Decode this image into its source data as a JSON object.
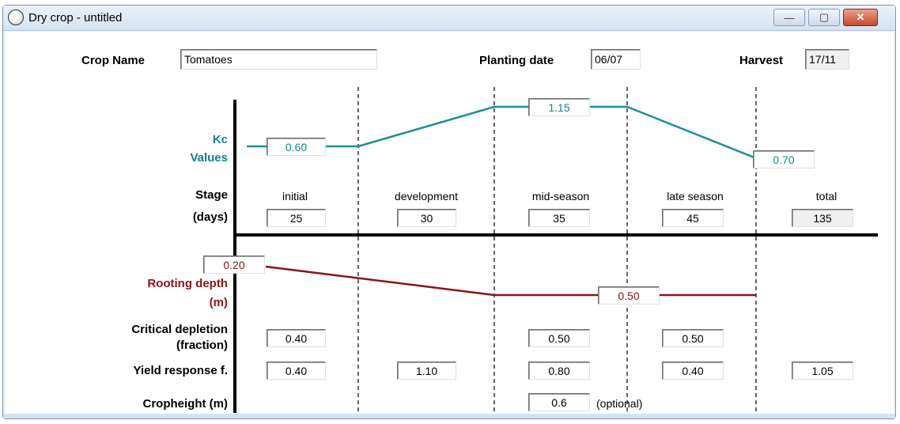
{
  "window": {
    "title": "Dry crop - untitled",
    "minimize_glyph": "—",
    "maximize_glyph": "▢",
    "close_glyph": "✕"
  },
  "header": {
    "crop_name_label": "Crop Name",
    "crop_name_value": "Tomatoes",
    "planting_label": "Planting date",
    "planting_value": "06/07",
    "harvest_label": "Harvest",
    "harvest_value": "17/11"
  },
  "kc": {
    "label_line1": "Kc",
    "label_line2": "Values",
    "initial": "0.60",
    "mid": "1.15",
    "end": "0.70",
    "color": "#1a8f95"
  },
  "stage": {
    "label": "Stage",
    "days_label": "(days)",
    "names": [
      "initial",
      "development",
      "mid-season",
      "late season",
      "total"
    ],
    "days": [
      "25",
      "30",
      "35",
      "45",
      "135"
    ]
  },
  "rooting": {
    "label_line1": "Rooting depth",
    "label_line2": "(m)",
    "initial": "0.20",
    "max": "0.50",
    "color": "#8b1414"
  },
  "critical_depletion": {
    "label_line1": "Critical depletion",
    "label_line2": "(fraction)",
    "initial": "0.40",
    "mid": "0.50",
    "late": "0.50"
  },
  "yield_response": {
    "label": "Yield response f.",
    "initial": "0.40",
    "development": "1.10",
    "mid": "0.80",
    "late": "0.40",
    "total": "1.05"
  },
  "cropheight": {
    "label": "Cropheight (m)",
    "value": "0.6",
    "note": "(optional)"
  }
}
